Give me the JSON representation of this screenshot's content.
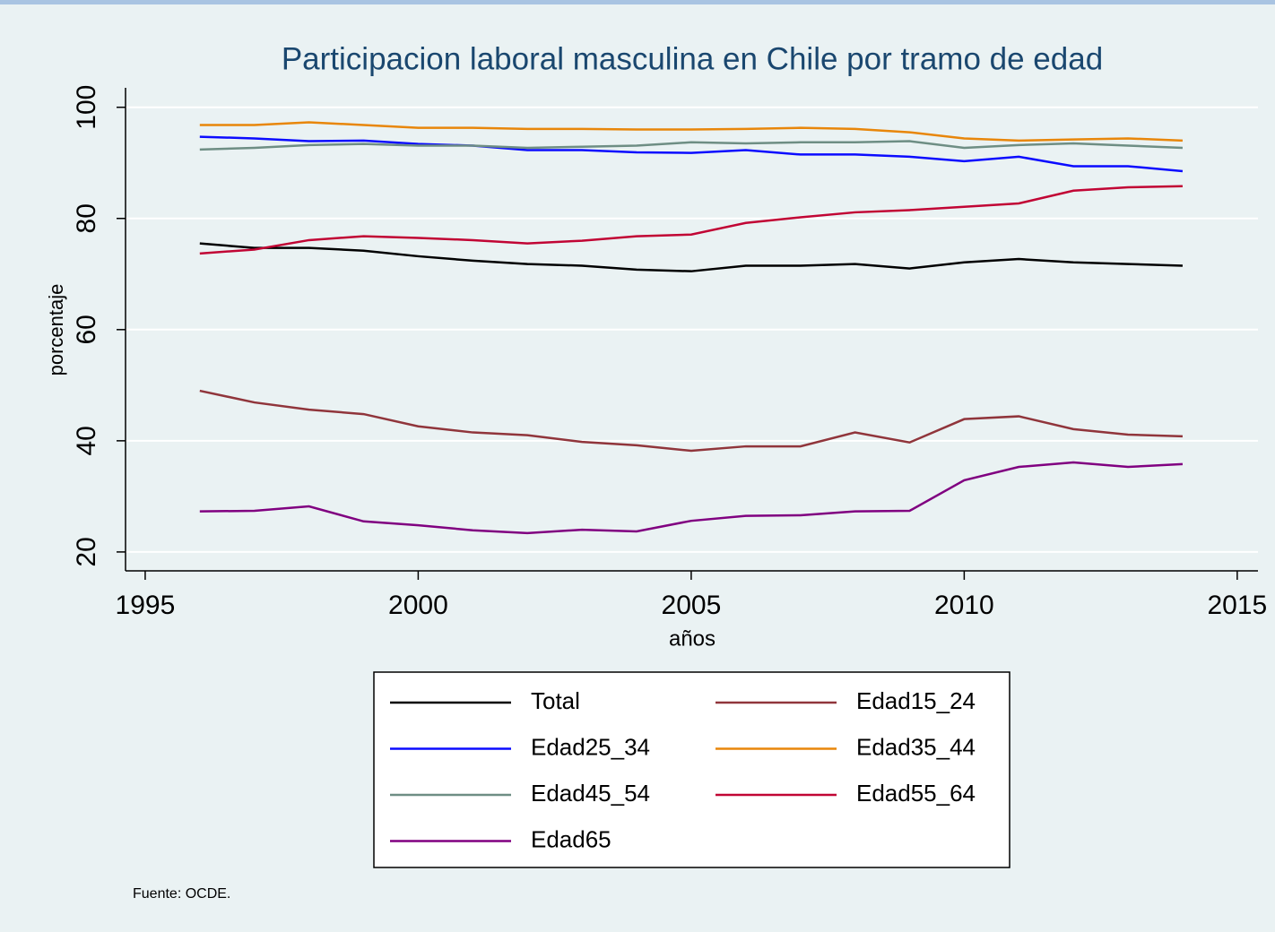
{
  "chart_data": {
    "type": "line",
    "title": "Participacion laboral masculina en Chile por tramo de edad",
    "x_label": "años",
    "y_label": "porcentaje",
    "note": "Fuente: OCDE.",
    "x": [
      1996,
      1997,
      1998,
      1999,
      2000,
      2001,
      2002,
      2003,
      2004,
      2005,
      2006,
      2007,
      2008,
      2009,
      2010,
      2011,
      2012,
      2013,
      2014
    ],
    "series": [
      {
        "name": "Total",
        "color": "#000000",
        "values": [
          75.5,
          74.7,
          74.7,
          74.2,
          73.2,
          72.4,
          71.8,
          71.5,
          70.8,
          70.5,
          71.5,
          71.5,
          71.8,
          71.0,
          72.1,
          72.7,
          72.1,
          71.8,
          71.5
        ]
      },
      {
        "name": "Edad15_24",
        "color": "#90353b",
        "values": [
          49.0,
          46.9,
          45.6,
          44.8,
          42.6,
          41.5,
          41.0,
          39.8,
          39.2,
          38.2,
          39.0,
          39.0,
          41.5,
          39.7,
          43.9,
          44.4,
          42.1,
          41.1,
          40.8
        ]
      },
      {
        "name": "Edad25_34",
        "color": "#0b0bff",
        "values": [
          94.7,
          94.4,
          93.9,
          94.0,
          93.4,
          93.1,
          92.3,
          92.3,
          91.9,
          91.8,
          92.3,
          91.5,
          91.5,
          91.1,
          90.3,
          91.1,
          89.4,
          89.4,
          88.5
        ]
      },
      {
        "name": "Edad35_44",
        "color": "#e8860a",
        "values": [
          96.8,
          96.8,
          97.3,
          96.8,
          96.3,
          96.3,
          96.1,
          96.1,
          96.0,
          96.0,
          96.1,
          96.3,
          96.1,
          95.5,
          94.4,
          94.0,
          94.2,
          94.4,
          94.0
        ]
      },
      {
        "name": "Edad45_54",
        "color": "#6e8e84",
        "values": [
          92.4,
          92.7,
          93.2,
          93.4,
          93.1,
          93.1,
          92.7,
          92.9,
          93.1,
          93.7,
          93.5,
          93.7,
          93.7,
          93.9,
          92.7,
          93.2,
          93.5,
          93.1,
          92.7
        ]
      },
      {
        "name": "Edad55_64",
        "color": "#c10534",
        "values": [
          73.7,
          74.4,
          76.1,
          76.8,
          76.5,
          76.1,
          75.5,
          76.0,
          76.8,
          77.1,
          79.2,
          80.2,
          81.1,
          81.5,
          82.1,
          82.7,
          85.0,
          85.6,
          85.8
        ]
      },
      {
        "name": "Edad65",
        "color": "#800080",
        "values": [
          27.3,
          27.4,
          28.2,
          25.5,
          24.8,
          23.9,
          23.4,
          24.0,
          23.7,
          25.6,
          26.5,
          26.6,
          27.3,
          27.4,
          32.9,
          35.3,
          36.1,
          35.3,
          35.8
        ]
      }
    ],
    "xlim": [
      1994.64,
      2015.38
    ],
    "ylim": [
      16.6,
      103.5
    ],
    "xticks": [
      1995,
      2000,
      2005,
      2010,
      2015
    ],
    "yticks": [
      20,
      40,
      60,
      80,
      100
    ],
    "grid": true,
    "legend_columns": 2
  }
}
